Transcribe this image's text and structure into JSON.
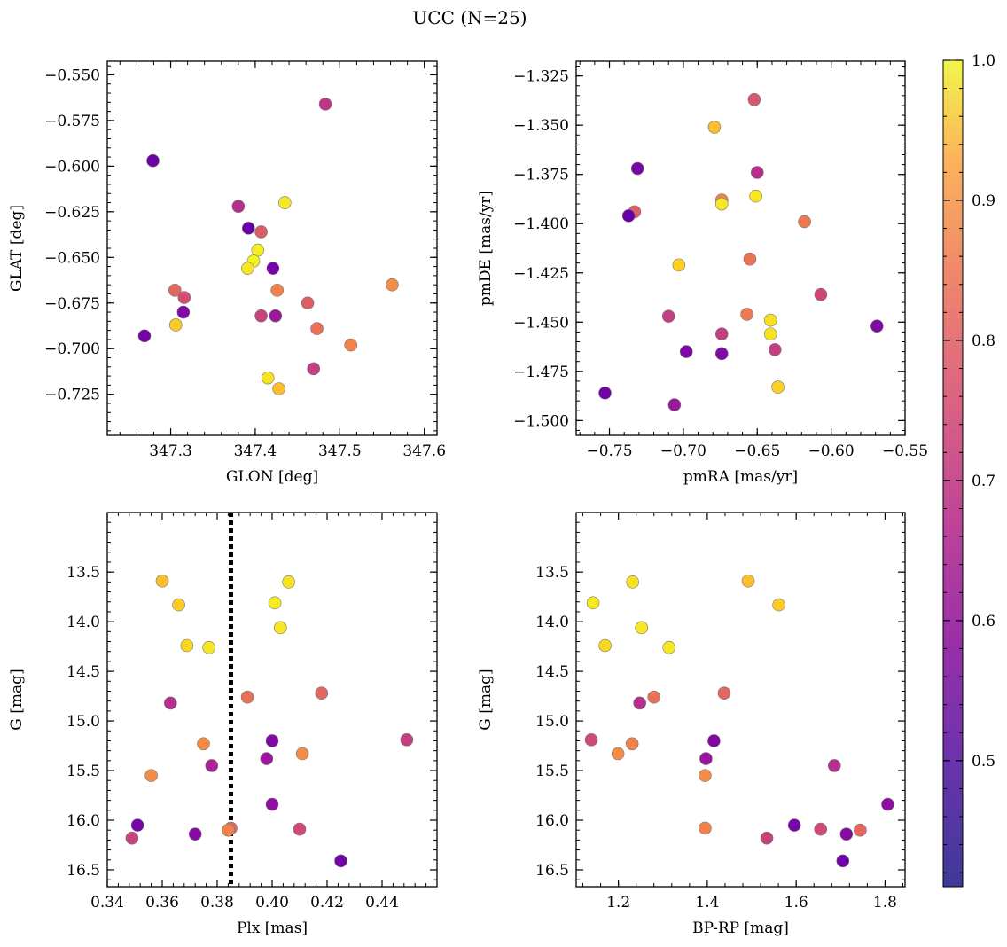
{
  "figure": {
    "title": "UCC (N=25)"
  },
  "colorbar": {
    "ticks": [
      0.5,
      0.6,
      0.7,
      0.8,
      0.9,
      1.0
    ],
    "tick_labels": [
      "0.5",
      "0.6",
      "0.7",
      "0.8",
      "0.9",
      "1.0"
    ],
    "range": [
      0.41,
      1.0
    ],
    "colormap": "plasma"
  },
  "chart_data": [
    {
      "type": "scatter",
      "name": "sky",
      "xlabel": "GLON [deg]",
      "ylabel": "GLAT [deg]",
      "xlim": [
        347.225,
        347.615
      ],
      "ylim": [
        -0.7475,
        -0.5425
      ],
      "xticks": [
        347.3,
        347.4,
        347.5,
        347.6
      ],
      "xtick_labels": [
        "347.3",
        "347.4",
        "347.5",
        "347.6"
      ],
      "yticks": [
        -0.725,
        -0.7,
        -0.675,
        -0.65,
        -0.625,
        -0.6,
        -0.575,
        -0.55
      ],
      "ytick_labels": [
        "−0.725",
        "−0.700",
        "−0.675",
        "−0.650",
        "−0.625",
        "−0.600",
        "−0.575",
        "−0.550"
      ],
      "x": [
        347.279,
        347.483,
        347.38,
        347.435,
        347.392,
        347.407,
        347.403,
        347.398,
        347.391,
        347.421,
        347.305,
        347.316,
        347.562,
        347.426,
        347.315,
        347.407,
        347.424,
        347.462,
        347.473,
        347.269,
        347.306,
        347.513,
        347.469,
        347.415,
        347.428
      ],
      "y": [
        -0.597,
        -0.566,
        -0.622,
        -0.62,
        -0.634,
        -0.636,
        -0.646,
        -0.652,
        -0.656,
        -0.656,
        -0.668,
        -0.672,
        -0.665,
        -0.668,
        -0.68,
        -0.682,
        -0.682,
        -0.675,
        -0.689,
        -0.693,
        -0.687,
        -0.698,
        -0.711,
        -0.716,
        -0.722
      ],
      "c": [
        0.43,
        0.6,
        0.58,
        0.97,
        0.42,
        0.7,
        0.98,
        0.99,
        0.97,
        0.45,
        0.72,
        0.66,
        0.8,
        0.78,
        0.47,
        0.63,
        0.52,
        0.7,
        0.74,
        0.44,
        0.92,
        0.78,
        0.62,
        0.96,
        0.9
      ]
    },
    {
      "type": "scatter",
      "name": "proper-motion",
      "xlabel": "pmRA [mas/yr]",
      "ylabel": "pmDE [mas/yr]",
      "xlim": [
        -0.7725,
        -0.55
      ],
      "ylim": [
        -1.5075,
        -1.3175
      ],
      "xticks": [
        -0.75,
        -0.7,
        -0.65,
        -0.6,
        -0.55
      ],
      "xtick_labels": [
        "−0.75",
        "−0.70",
        "−0.65",
        "−0.60",
        "−0.55"
      ],
      "yticks": [
        -1.5,
        -1.475,
        -1.45,
        -1.425,
        -1.4,
        -1.375,
        -1.35,
        -1.325
      ],
      "ytick_labels": [
        "−1.500",
        "−1.475",
        "−1.450",
        "−1.425",
        "−1.400",
        "−1.375",
        "−1.350",
        "−1.325"
      ],
      "x": [
        -0.652,
        -0.679,
        -0.731,
        -0.65,
        -0.651,
        -0.674,
        -0.674,
        -0.733,
        -0.737,
        -0.618,
        -0.703,
        -0.655,
        -0.607,
        -0.71,
        -0.657,
        -0.641,
        -0.569,
        -0.674,
        -0.641,
        -0.698,
        -0.674,
        -0.638,
        -0.636,
        -0.753,
        -0.706
      ],
      "y": [
        -1.337,
        -1.351,
        -1.372,
        -1.374,
        -1.386,
        -1.388,
        -1.39,
        -1.394,
        -1.396,
        -1.399,
        -1.421,
        -1.418,
        -1.436,
        -1.447,
        -1.446,
        -1.449,
        -1.452,
        -1.456,
        -1.456,
        -1.465,
        -1.466,
        -1.464,
        -1.483,
        -1.486,
        -1.492
      ],
      "c": [
        0.68,
        0.9,
        0.45,
        0.58,
        0.97,
        0.78,
        0.97,
        0.7,
        0.42,
        0.76,
        0.93,
        0.75,
        0.64,
        0.62,
        0.76,
        0.96,
        0.47,
        0.62,
        0.96,
        0.46,
        0.47,
        0.62,
        0.93,
        0.44,
        0.52
      ]
    },
    {
      "type": "scatter",
      "name": "plx-g",
      "xlabel": "Plx [mas]",
      "ylabel": "G [mag]",
      "xlim": [
        0.34,
        0.46
      ],
      "ylim": [
        16.67,
        12.9
      ],
      "xticks": [
        0.34,
        0.36,
        0.38,
        0.4,
        0.42,
        0.44
      ],
      "xtick_labels": [
        "0.34",
        "0.36",
        "0.38",
        "0.40",
        "0.42",
        "0.44"
      ],
      "yticks": [
        13.5,
        14.0,
        14.5,
        15.0,
        15.5,
        16.0,
        16.5
      ],
      "ytick_labels": [
        "13.5",
        "14.0",
        "14.5",
        "15.0",
        "15.5",
        "16.0",
        "16.5"
      ],
      "vline": 0.385,
      "x": [
        0.36,
        0.406,
        0.366,
        0.401,
        0.403,
        0.369,
        0.377,
        0.363,
        0.391,
        0.418,
        0.449,
        0.4,
        0.375,
        0.411,
        0.398,
        0.378,
        0.356,
        0.4,
        0.351,
        0.41,
        0.372,
        0.385,
        0.384,
        0.349,
        0.425
      ],
      "y": [
        13.59,
        13.6,
        13.83,
        13.81,
        14.06,
        14.24,
        14.26,
        14.82,
        14.76,
        14.72,
        15.19,
        15.2,
        15.23,
        15.33,
        15.38,
        15.45,
        15.55,
        15.84,
        16.05,
        16.09,
        16.14,
        16.08,
        16.1,
        16.18,
        16.41
      ],
      "c": [
        0.9,
        0.96,
        0.92,
        0.98,
        0.97,
        0.94,
        0.97,
        0.58,
        0.74,
        0.72,
        0.62,
        0.47,
        0.8,
        0.8,
        0.52,
        0.55,
        0.8,
        0.5,
        0.45,
        0.65,
        0.48,
        0.72,
        0.78,
        0.63,
        0.44
      ]
    },
    {
      "type": "scatter",
      "name": "cmd",
      "xlabel": "BP-RP [mag]",
      "ylabel": "G [mag]",
      "xlim": [
        1.105,
        1.845
      ],
      "ylim": [
        16.67,
        12.9
      ],
      "xticks": [
        1.2,
        1.4,
        1.6,
        1.8
      ],
      "xtick_labels": [
        "1.2",
        "1.4",
        "1.6",
        "1.8"
      ],
      "yticks": [
        13.5,
        14.0,
        14.5,
        15.0,
        15.5,
        16.0,
        16.5
      ],
      "ytick_labels": [
        "13.5",
        "14.0",
        "14.5",
        "15.0",
        "15.5",
        "16.0",
        "16.5"
      ],
      "x": [
        1.232,
        1.492,
        1.143,
        1.561,
        1.252,
        1.17,
        1.314,
        1.248,
        1.28,
        1.438,
        1.139,
        1.415,
        1.231,
        1.199,
        1.397,
        1.686,
        1.395,
        1.806,
        1.596,
        1.655,
        1.713,
        1.744,
        1.395,
        1.534,
        1.705
      ],
      "y": [
        13.6,
        13.59,
        13.81,
        13.83,
        14.06,
        14.24,
        14.26,
        14.82,
        14.76,
        14.72,
        15.19,
        15.2,
        15.23,
        15.33,
        15.38,
        15.45,
        15.55,
        15.84,
        16.05,
        16.09,
        16.14,
        16.1,
        16.08,
        16.18,
        16.41
      ],
      "c": [
        0.96,
        0.9,
        0.98,
        0.92,
        0.97,
        0.94,
        0.97,
        0.58,
        0.74,
        0.72,
        0.65,
        0.47,
        0.78,
        0.8,
        0.52,
        0.58,
        0.8,
        0.5,
        0.45,
        0.65,
        0.48,
        0.72,
        0.78,
        0.63,
        0.44
      ]
    }
  ]
}
